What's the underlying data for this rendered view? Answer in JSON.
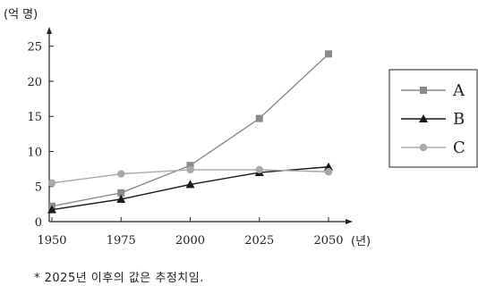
{
  "chart_data": {
    "type": "line",
    "ylabel": "(억 명)",
    "xlabel": "(년)",
    "x": [
      1950,
      1975,
      2000,
      2025,
      2050
    ],
    "ylim": [
      0,
      27
    ],
    "xlim": [
      1950,
      2050
    ],
    "yticks": [
      0,
      5,
      10,
      15,
      20,
      25
    ],
    "xticks": [
      1950,
      1975,
      2000,
      2025,
      2050
    ],
    "grid": false,
    "legend_position": "right",
    "series": [
      {
        "name": "A",
        "values": [
          2.2,
          4.1,
          8.0,
          14.7,
          23.9
        ],
        "color": "#8a8a8a",
        "marker": "square"
      },
      {
        "name": "B",
        "values": [
          1.7,
          3.2,
          5.3,
          7.0,
          7.8
        ],
        "color": "#1a1a1a",
        "marker": "triangle"
      },
      {
        "name": "C",
        "values": [
          5.5,
          6.8,
          7.4,
          7.4,
          7.1
        ],
        "color": "#a8a8a8",
        "marker": "circle"
      }
    ]
  },
  "footnote": "* 2025년 이후의 값은 추정치임."
}
